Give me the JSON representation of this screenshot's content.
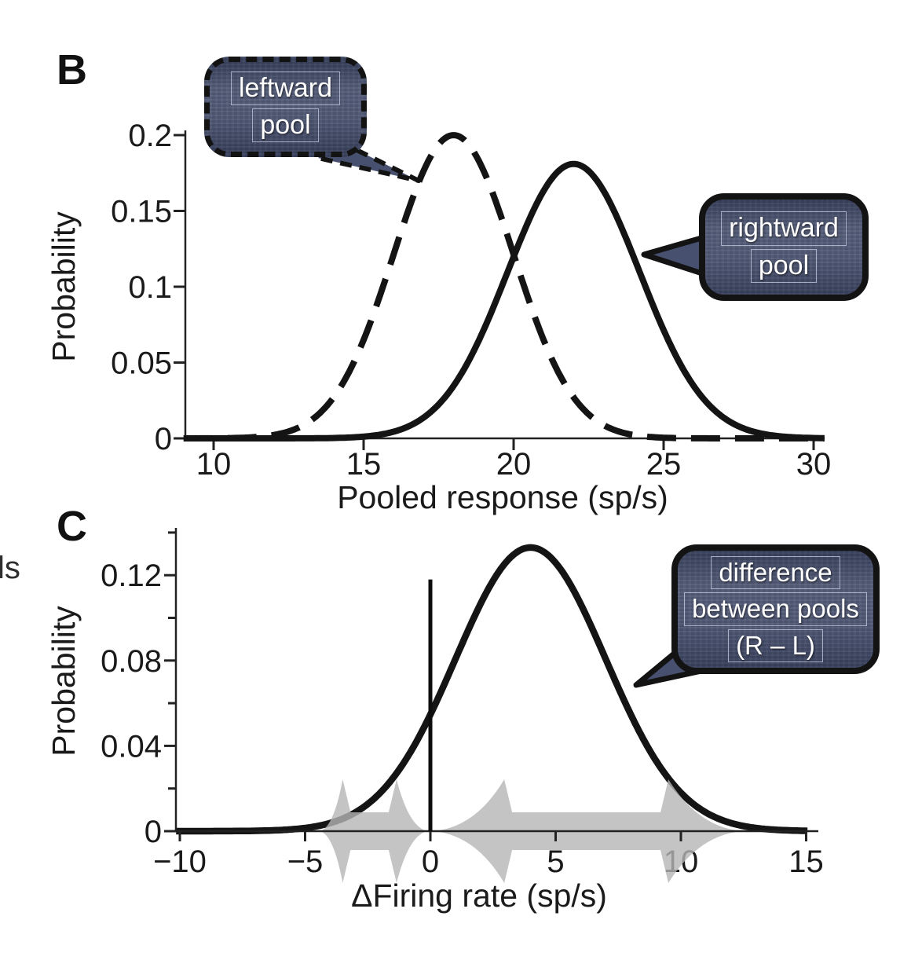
{
  "page": {
    "background": "#ffffff"
  },
  "panels": {
    "b": {
      "letter": "B"
    },
    "c": {
      "letter": "C"
    }
  },
  "stray_text": "ls",
  "colors": {
    "curve": "#141414",
    "axis": "#222222",
    "tick_text": "#1a1a1a",
    "arrow_gray": "#b5b5b5",
    "zero_line": "#0d0d0d",
    "bubble_fill": "#47506e",
    "bubble_border": "#131313",
    "bubble_text": "#ffffff"
  },
  "callouts": {
    "leftward": {
      "lines": [
        "leftward",
        "pool"
      ],
      "border_style": "dashed",
      "points_to": "dashed leftward-pool curve"
    },
    "rightward": {
      "lines": [
        "rightward",
        "pool"
      ],
      "border_style": "solid",
      "points_to": "solid rightward-pool curve"
    },
    "difference": {
      "lines": [
        "difference",
        "between pools",
        "(R – L)"
      ],
      "border_style": "solid",
      "points_to": "difference distribution curve"
    }
  },
  "chart_data": [
    {
      "panel": "B",
      "type": "line",
      "title": "",
      "xlabel": "Pooled response (sp/s)",
      "ylabel": "Probability",
      "xlim": [
        9,
        30.4
      ],
      "ylim": [
        0,
        0.2
      ],
      "grid": false,
      "x_ticks": {
        "values": [
          10,
          15,
          20,
          25,
          30
        ],
        "labels": [
          "10",
          "15",
          "20",
          "25",
          "30"
        ]
      },
      "y_ticks": {
        "values": [
          0,
          0.05,
          0.1,
          0.15,
          0.2
        ],
        "labels": [
          "0",
          "0.05",
          "0.1",
          "0.15",
          "0.2"
        ]
      },
      "series": [
        {
          "name": "leftward pool",
          "line_style": "dashed",
          "shape": "gaussian",
          "mean": 18,
          "sd": 2.0,
          "peak": 0.2
        },
        {
          "name": "rightward pool",
          "line_style": "solid",
          "shape": "gaussian",
          "mean": 22,
          "sd": 2.2,
          "peak": 0.181
        }
      ]
    },
    {
      "panel": "C",
      "type": "line",
      "title": "",
      "xlabel": "ΔFiring rate (sp/s)",
      "ylabel": "Probability",
      "xlim": [
        -10.2,
        15.1
      ],
      "ylim": [
        0,
        0.14
      ],
      "grid": false,
      "x_ticks": {
        "values": [
          -10,
          -5,
          0,
          5,
          10,
          15
        ],
        "labels": [
          "−10",
          "−5",
          "0",
          "5",
          "10",
          "15"
        ]
      },
      "y_ticks_major": {
        "values": [
          0,
          0.04,
          0.08,
          0.12
        ],
        "labels": [
          "0",
          "0.04",
          "0.08",
          "0.12"
        ]
      },
      "y_ticks_minor": [
        0.02,
        0.06,
        0.1,
        0.14
      ],
      "series": [
        {
          "name": "difference between pools (R − L)",
          "line_style": "solid",
          "shape": "gaussian",
          "mean": 4,
          "sd": 3.0,
          "peak": 0.133
        }
      ],
      "zero_line": {
        "x": 0,
        "top": 0.118
      },
      "gray_arrows": [
        {
          "tip_left": -4.4,
          "flare_left": -3.5,
          "flare_right": -1.35,
          "tip_right": -0.12
        },
        {
          "tip_left": 0.12,
          "flare_left": 2.95,
          "flare_right": 9.5,
          "tip_right": 12.45
        }
      ]
    }
  ]
}
